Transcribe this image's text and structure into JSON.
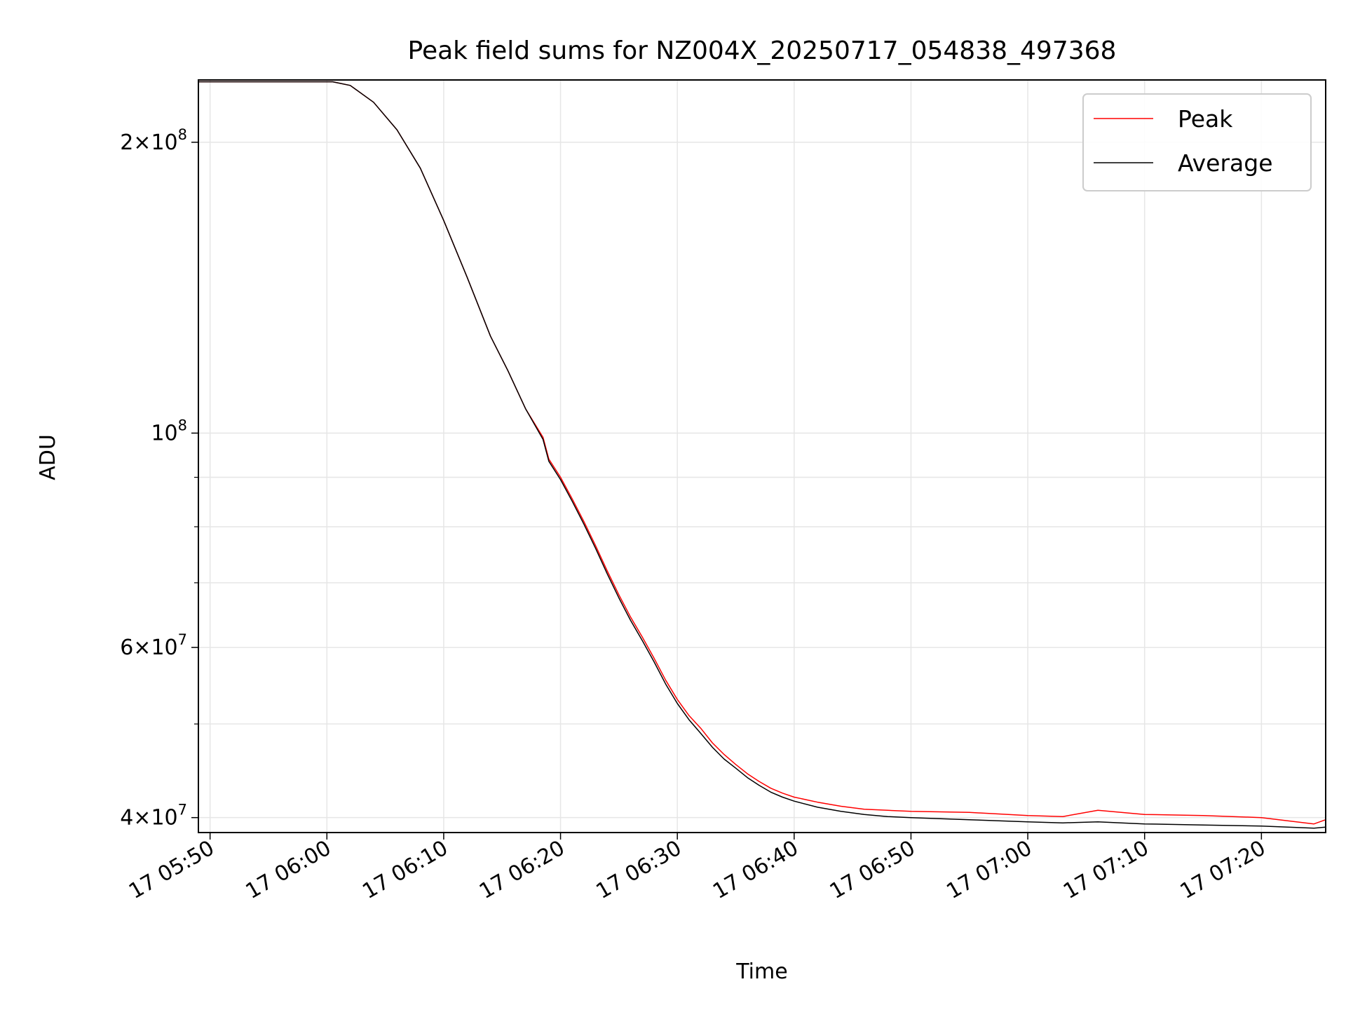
{
  "chart_data": {
    "type": "line",
    "title": "Peak field sums for NZ004X_20250717_054838_497368",
    "xlabel": "Time",
    "ylabel": "ADU",
    "x_scale": "time",
    "y_scale": "log",
    "xlim": [
      "2025-07-17T05:49:00",
      "2025-07-17T07:25:30"
    ],
    "ylim": [
      38600000.0,
      232000000.0
    ],
    "x_ticks": [
      {
        "t": "2025-07-17T05:50:00",
        "label": "17 05:50"
      },
      {
        "t": "2025-07-17T06:00:00",
        "label": "17 06:00"
      },
      {
        "t": "2025-07-17T06:10:00",
        "label": "17 06:10"
      },
      {
        "t": "2025-07-17T06:20:00",
        "label": "17 06:20"
      },
      {
        "t": "2025-07-17T06:30:00",
        "label": "17 06:30"
      },
      {
        "t": "2025-07-17T06:40:00",
        "label": "17 06:40"
      },
      {
        "t": "2025-07-17T06:50:00",
        "label": "17 06:50"
      },
      {
        "t": "2025-07-17T07:00:00",
        "label": "17 07:00"
      },
      {
        "t": "2025-07-17T07:10:00",
        "label": "17 07:10"
      },
      {
        "t": "2025-07-17T07:20:00",
        "label": "17 07:20"
      }
    ],
    "y_ticks_major": [
      {
        "value": 40000000.0,
        "mant": "4",
        "exp": "7"
      },
      {
        "value": 60000000.0,
        "mant": "6",
        "exp": "7"
      },
      {
        "value": 100000000.0,
        "mant": "",
        "exp": "8"
      },
      {
        "value": 200000000.0,
        "mant": "2",
        "exp": "8"
      }
    ],
    "y_ticks_minor": [
      50000000.0,
      70000000.0,
      80000000.0,
      90000000.0
    ],
    "grid": true,
    "legend": "top-right",
    "series": [
      {
        "name": "Peak",
        "color": "#ff0000",
        "points": [
          [
            "2025-07-17T05:49:00",
            231000000.0
          ],
          [
            "2025-07-17T05:56:00",
            231000000.0
          ],
          [
            "2025-07-17T06:00:30",
            231000000.0
          ],
          [
            "2025-07-17T06:02:00",
            229000000.0
          ],
          [
            "2025-07-17T06:04:00",
            220000000.0
          ],
          [
            "2025-07-17T06:06:00",
            206000000.0
          ],
          [
            "2025-07-17T06:08:00",
            188000000.0
          ],
          [
            "2025-07-17T06:10:00",
            166000000.0
          ],
          [
            "2025-07-17T06:12:00",
            145000000.0
          ],
          [
            "2025-07-17T06:14:00",
            126000000.0
          ],
          [
            "2025-07-17T06:15:30",
            116000000.0
          ],
          [
            "2025-07-17T06:17:00",
            106000000.0
          ],
          [
            "2025-07-17T06:18:30",
            99000000.0
          ],
          [
            "2025-07-17T06:19:00",
            94000000.0
          ],
          [
            "2025-07-17T06:20:00",
            90000000.0
          ],
          [
            "2025-07-17T06:21:00",
            85500000.0
          ],
          [
            "2025-07-17T06:22:00",
            81000000.0
          ],
          [
            "2025-07-17T06:23:00",
            76500000.0
          ],
          [
            "2025-07-17T06:24:00",
            72000000.0
          ],
          [
            "2025-07-17T06:25:00",
            68000000.0
          ],
          [
            "2025-07-17T06:26:00",
            64500000.0
          ],
          [
            "2025-07-17T06:27:00",
            61500000.0
          ],
          [
            "2025-07-17T06:28:00",
            58500000.0
          ],
          [
            "2025-07-17T06:29:00",
            55500000.0
          ],
          [
            "2025-07-17T06:30:00",
            53000000.0
          ],
          [
            "2025-07-17T06:31:00",
            51000000.0
          ],
          [
            "2025-07-17T06:32:00",
            49500000.0
          ],
          [
            "2025-07-17T06:33:00",
            47800000.0
          ],
          [
            "2025-07-17T06:34:00",
            46500000.0
          ],
          [
            "2025-07-17T06:35:00",
            45400000.0
          ],
          [
            "2025-07-17T06:36:00",
            44400000.0
          ],
          [
            "2025-07-17T06:37:00",
            43600000.0
          ],
          [
            "2025-07-17T06:38:00",
            42900000.0
          ],
          [
            "2025-07-17T06:39:00",
            42400000.0
          ],
          [
            "2025-07-17T06:40:00",
            42000000.0
          ],
          [
            "2025-07-17T06:42:00",
            41500000.0
          ],
          [
            "2025-07-17T06:44:00",
            41100000.0
          ],
          [
            "2025-07-17T06:46:00",
            40800000.0
          ],
          [
            "2025-07-17T06:48:00",
            40700000.0
          ],
          [
            "2025-07-17T06:50:00",
            40600000.0
          ],
          [
            "2025-07-17T06:55:00",
            40500000.0
          ],
          [
            "2025-07-17T07:00:00",
            40200000.0
          ],
          [
            "2025-07-17T07:03:00",
            40100000.0
          ],
          [
            "2025-07-17T07:06:00",
            40700000.0
          ],
          [
            "2025-07-17T07:10:00",
            40300000.0
          ],
          [
            "2025-07-17T07:15:00",
            40200000.0
          ],
          [
            "2025-07-17T07:20:00",
            40000000.0
          ],
          [
            "2025-07-17T07:24:30",
            39400000.0
          ],
          [
            "2025-07-17T07:25:30",
            39800000.0
          ]
        ]
      },
      {
        "name": "Average",
        "color": "#000000",
        "points": [
          [
            "2025-07-17T05:49:00",
            231000000.0
          ],
          [
            "2025-07-17T05:56:00",
            231000000.0
          ],
          [
            "2025-07-17T06:00:30",
            231000000.0
          ],
          [
            "2025-07-17T06:02:00",
            229000000.0
          ],
          [
            "2025-07-17T06:04:00",
            220000000.0
          ],
          [
            "2025-07-17T06:06:00",
            206000000.0
          ],
          [
            "2025-07-17T06:08:00",
            188000000.0
          ],
          [
            "2025-07-17T06:10:00",
            166000000.0
          ],
          [
            "2025-07-17T06:12:00",
            145000000.0
          ],
          [
            "2025-07-17T06:14:00",
            126000000.0
          ],
          [
            "2025-07-17T06:15:30",
            116000000.0
          ],
          [
            "2025-07-17T06:17:00",
            106000000.0
          ],
          [
            "2025-07-17T06:18:30",
            98500000.0
          ],
          [
            "2025-07-17T06:19:00",
            93500000.0
          ],
          [
            "2025-07-17T06:20:00",
            89500000.0
          ],
          [
            "2025-07-17T06:21:00",
            85000000.0
          ],
          [
            "2025-07-17T06:22:00",
            80500000.0
          ],
          [
            "2025-07-17T06:23:00",
            76000000.0
          ],
          [
            "2025-07-17T06:24:00",
            71500000.0
          ],
          [
            "2025-07-17T06:25:00",
            67500000.0
          ],
          [
            "2025-07-17T06:26:00",
            64000000.0
          ],
          [
            "2025-07-17T06:27:00",
            61000000.0
          ],
          [
            "2025-07-17T06:28:00",
            58000000.0
          ],
          [
            "2025-07-17T06:29:00",
            55000000.0
          ],
          [
            "2025-07-17T06:30:00",
            52500000.0
          ],
          [
            "2025-07-17T06:31:00",
            50500000.0
          ],
          [
            "2025-07-17T06:32:00",
            48900000.0
          ],
          [
            "2025-07-17T06:33:00",
            47300000.0
          ],
          [
            "2025-07-17T06:34:00",
            46000000.0
          ],
          [
            "2025-07-17T06:35:00",
            45000000.0
          ],
          [
            "2025-07-17T06:36:00",
            44000000.0
          ],
          [
            "2025-07-17T06:37:00",
            43200000.0
          ],
          [
            "2025-07-17T06:38:00",
            42500000.0
          ],
          [
            "2025-07-17T06:39:00",
            42000000.0
          ],
          [
            "2025-07-17T06:40:00",
            41600000.0
          ],
          [
            "2025-07-17T06:42:00",
            41000000.0
          ],
          [
            "2025-07-17T06:44:00",
            40600000.0
          ],
          [
            "2025-07-17T06:46:00",
            40300000.0
          ],
          [
            "2025-07-17T06:48:00",
            40100000.0
          ],
          [
            "2025-07-17T06:50:00",
            40000000.0
          ],
          [
            "2025-07-17T06:55:00",
            39800000.0
          ],
          [
            "2025-07-17T07:00:00",
            39600000.0
          ],
          [
            "2025-07-17T07:03:00",
            39500000.0
          ],
          [
            "2025-07-17T07:06:00",
            39600000.0
          ],
          [
            "2025-07-17T07:10:00",
            39400000.0
          ],
          [
            "2025-07-17T07:15:00",
            39300000.0
          ],
          [
            "2025-07-17T07:20:00",
            39200000.0
          ],
          [
            "2025-07-17T07:24:30",
            39000000.0
          ],
          [
            "2025-07-17T07:25:30",
            39100000.0
          ]
        ]
      }
    ]
  }
}
